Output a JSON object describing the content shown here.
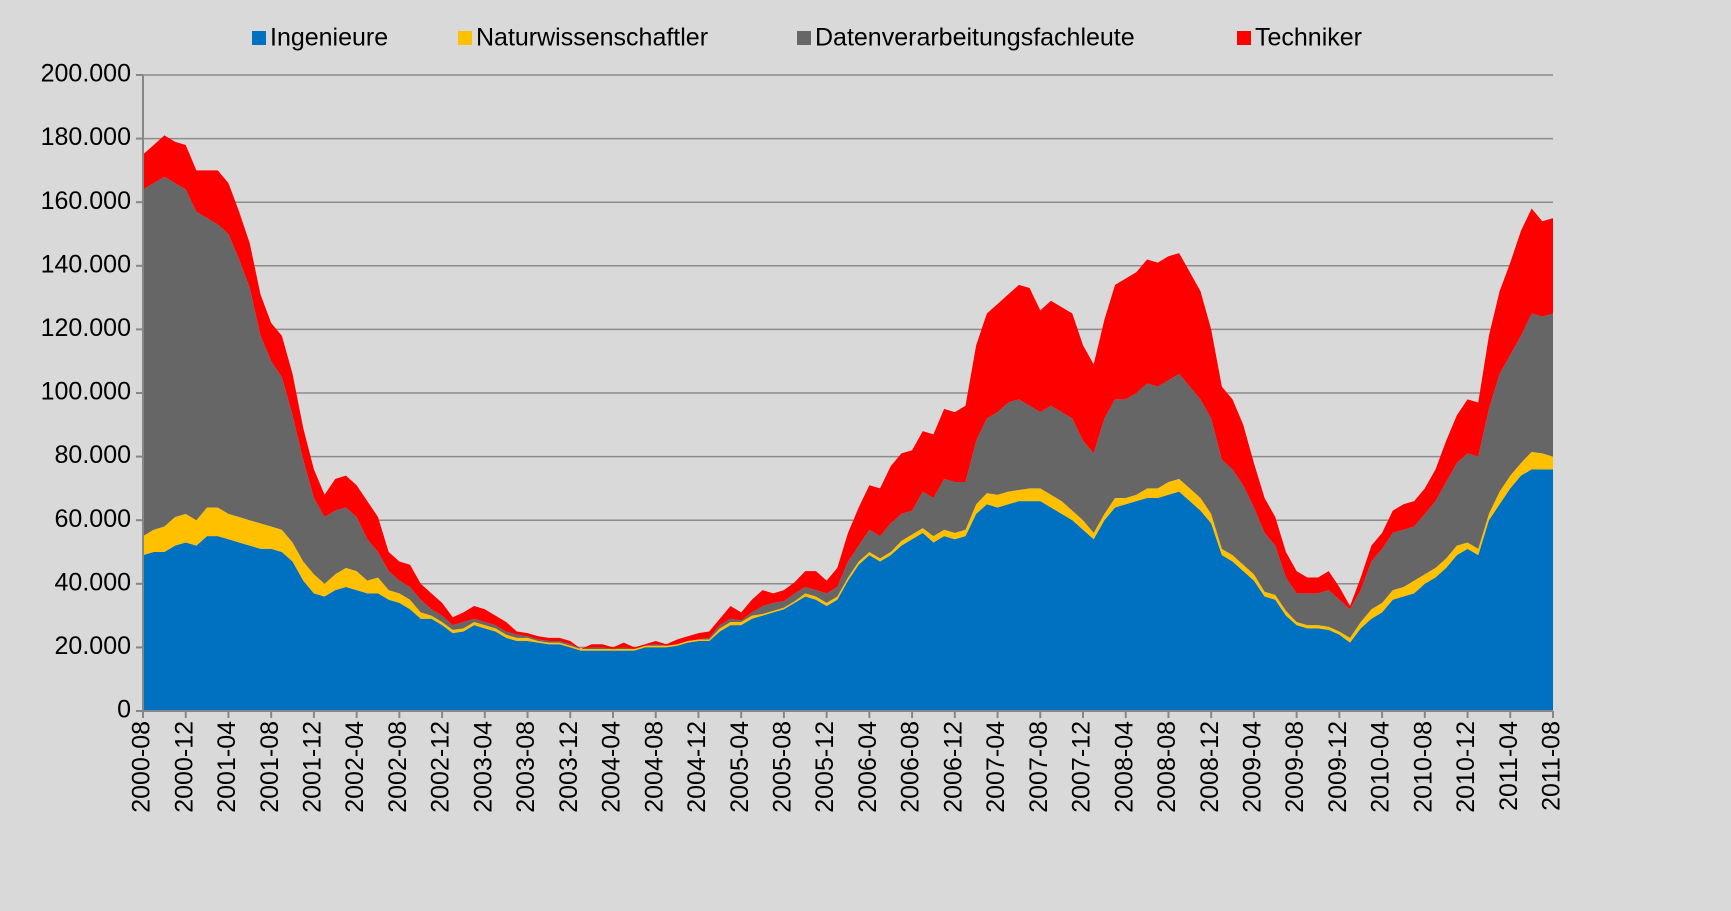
{
  "chart_data": {
    "type": "stacked_area",
    "categories": [
      "2000-08",
      null,
      null,
      null,
      "2000-12",
      null,
      null,
      null,
      "2001-04",
      null,
      null,
      null,
      "2001-08",
      null,
      null,
      null,
      "2001-12",
      null,
      null,
      null,
      "2002-04",
      null,
      null,
      null,
      "2002-08",
      null,
      null,
      null,
      "2002-12",
      null,
      null,
      null,
      "2003-04",
      null,
      null,
      null,
      "2003-08",
      null,
      null,
      null,
      "2003-12",
      null,
      null,
      null,
      "2004-04",
      null,
      null,
      null,
      "2004-08",
      null,
      null,
      null,
      "2004-12",
      null,
      null,
      null,
      "2005-04",
      null,
      null,
      null,
      "2005-08",
      null,
      null,
      null,
      "2005-12",
      null,
      null,
      null,
      "2006-04",
      null,
      null,
      null,
      "2006-08",
      null,
      null,
      null,
      "2006-12",
      null,
      null,
      null,
      "2007-04",
      null,
      null,
      null,
      "2007-08",
      null,
      null,
      null,
      "2007-12",
      null,
      null,
      null,
      "2008-04",
      null,
      null,
      null,
      "2008-08",
      null,
      null,
      null,
      "2008-12",
      null,
      null,
      null,
      "2009-04",
      null,
      null,
      null,
      "2009-08",
      null,
      null,
      null,
      "2009-12",
      null,
      null,
      null,
      "2010-04",
      null,
      null,
      null,
      "2010-08",
      null,
      null,
      null,
      "2010-12",
      null,
      null,
      null,
      "2011-04",
      null,
      null,
      null,
      "2011-08"
    ],
    "series": [
      {
        "name": "Ingenieure",
        "color": "#0070c0",
        "values": [
          49000,
          50000,
          50000,
          52000,
          53000,
          52000,
          55000,
          55000,
          54000,
          53000,
          52000,
          51000,
          51000,
          50000,
          47000,
          41000,
          37000,
          36000,
          38000,
          39000,
          38000,
          37000,
          37000,
          35000,
          34000,
          32000,
          29000,
          29000,
          27000,
          24500,
          25000,
          27000,
          26000,
          25000,
          23000,
          22000,
          22000,
          21500,
          21000,
          21000,
          20000,
          19000,
          19000,
          19000,
          19000,
          19000,
          19000,
          20000,
          20000,
          20000,
          20500,
          21500,
          22000,
          22000,
          25000,
          27000,
          27000,
          29000,
          30000,
          31000,
          32000,
          34000,
          36000,
          35000,
          33000,
          35000,
          41000,
          46000,
          49000,
          47000,
          49000,
          52000,
          54000,
          56000,
          53000,
          55000,
          54000,
          55000,
          62000,
          65000,
          64000,
          65000,
          66000,
          66000,
          66000,
          64000,
          62000,
          60000,
          57000,
          54000,
          60000,
          64000,
          65000,
          66000,
          67000,
          67000,
          68000,
          69000,
          66000,
          63000,
          59000,
          49000,
          47000,
          44000,
          41000,
          36000,
          35000,
          30000,
          27000,
          26000,
          26000,
          25500,
          24000,
          21500,
          26000,
          29000,
          31000,
          35000,
          36000,
          37000,
          40000,
          42000,
          45000,
          49000,
          51000,
          49000,
          60000,
          65000,
          70000,
          74000,
          76000,
          76000,
          76000
        ]
      },
      {
        "name": "Naturwissenschaftler",
        "color": "#ffc000",
        "values": [
          6000,
          7000,
          8000,
          9000,
          9000,
          8000,
          9000,
          9000,
          8000,
          8000,
          8000,
          8000,
          7000,
          7000,
          6000,
          6000,
          6000,
          4000,
          5000,
          6000,
          6000,
          4000,
          5000,
          3000,
          3000,
          3000,
          2000,
          1000,
          1000,
          1000,
          1000,
          1000,
          1000,
          1000,
          1000,
          1000,
          1000,
          500,
          500,
          500,
          500,
          500,
          500,
          500,
          500,
          500,
          500,
          500,
          500,
          500,
          500,
          500,
          500,
          500,
          1000,
          1000,
          1000,
          1000,
          500,
          500,
          500,
          500,
          1000,
          1000,
          1000,
          1000,
          1000,
          1000,
          1000,
          1000,
          1000,
          1500,
          1500,
          1500,
          2000,
          2000,
          2000,
          2000,
          3000,
          3500,
          4000,
          4000,
          3500,
          4000,
          4000,
          4000,
          4000,
          3000,
          3000,
          2000,
          2000,
          3000,
          2000,
          2000,
          3000,
          3000,
          4000,
          4000,
          4000,
          4000,
          3000,
          2000,
          2000,
          2000,
          2000,
          1500,
          1500,
          1500,
          1000,
          1000,
          1000,
          1000,
          1000,
          1500,
          2000,
          3000,
          3000,
          3000,
          3000,
          4000,
          3000,
          3000,
          3000,
          3000,
          2000,
          2000,
          2000,
          4000,
          4000,
          4000,
          5500,
          5000,
          4000
        ]
      },
      {
        "name": "Datenverarbeitungsfachleute",
        "color": "#666666",
        "values": [
          109000,
          109000,
          110000,
          105000,
          102000,
          97000,
          91000,
          89000,
          88000,
          81000,
          73000,
          59000,
          52000,
          48000,
          40000,
          32000,
          24000,
          21000,
          20000,
          19000,
          17000,
          13000,
          8000,
          6000,
          4000,
          4000,
          4000,
          2000,
          2000,
          1500,
          2000,
          1000,
          1000,
          1000,
          1000,
          1000,
          500,
          500,
          500,
          500,
          500,
          0,
          500,
          500,
          0,
          500,
          0,
          0,
          500,
          0,
          0,
          0,
          0,
          500,
          1000,
          1000,
          500,
          1000,
          2500,
          2500,
          2000,
          2500,
          2000,
          2000,
          3000,
          3000,
          5000,
          5000,
          7000,
          7000,
          9000,
          8500,
          7500,
          11500,
          12000,
          16000,
          16000,
          15000,
          20000,
          23500,
          26000,
          28000,
          28500,
          26000,
          24000,
          28000,
          28000,
          29000,
          25000,
          25000,
          30000,
          31000,
          31000,
          32000,
          33000,
          32000,
          32000,
          33000,
          32000,
          31000,
          30000,
          28000,
          27000,
          25000,
          21000,
          18500,
          15500,
          10500,
          9000,
          10000,
          10000,
          11500,
          10000,
          9000,
          10000,
          15000,
          17000,
          18000,
          18000,
          17000,
          19000,
          21000,
          24000,
          26000,
          28000,
          29000,
          33000,
          37000,
          38000,
          40000,
          43500,
          43000,
          45000
        ]
      },
      {
        "name": "Techniker",
        "color": "#ff0000",
        "values": [
          11000,
          12000,
          13000,
          13000,
          14000,
          13000,
          15000,
          17000,
          16000,
          15000,
          14000,
          13000,
          12000,
          13000,
          13000,
          10000,
          9000,
          7000,
          10000,
          10000,
          10000,
          12000,
          11000,
          6000,
          6000,
          7000,
          5000,
          5000,
          4000,
          2500,
          3000,
          4000,
          4000,
          3000,
          3000,
          1000,
          1000,
          1000,
          1000,
          1000,
          1000,
          0,
          1000,
          1000,
          500,
          1500,
          500,
          500,
          1000,
          500,
          1500,
          1500,
          2000,
          2000,
          2000,
          4000,
          2500,
          4000,
          5000,
          3000,
          3500,
          3500,
          5000,
          6000,
          4000,
          6000,
          9000,
          12000,
          14000,
          15000,
          18000,
          19000,
          19000,
          19000,
          20000,
          22000,
          22000,
          24000,
          30000,
          33000,
          34000,
          34000,
          36000,
          37000,
          32000,
          33000,
          33000,
          33000,
          30000,
          28000,
          31000,
          36000,
          38000,
          38000,
          39000,
          39000,
          39000,
          38000,
          36000,
          34000,
          28000,
          23000,
          22000,
          19000,
          14000,
          11000,
          9000,
          8000,
          7000,
          5000,
          5000,
          6000,
          4000,
          1000,
          4000,
          5000,
          5000,
          7000,
          8000,
          8000,
          8000,
          10000,
          13000,
          15000,
          17000,
          17000,
          23000,
          26000,
          29000,
          33000,
          33000,
          30000,
          30000
        ]
      }
    ],
    "ylim": [
      0,
      200000
    ],
    "yticks": [
      0,
      {
        "value": 20000,
        "label": "20.000"
      },
      {
        "value": 40000,
        "label": "40.000"
      },
      {
        "value": 60000,
        "label": "60.000"
      },
      {
        "value": 80000,
        "label": "80.000"
      },
      {
        "value": 100000,
        "label": "100.000"
      },
      {
        "value": 120000,
        "label": "120.000"
      },
      {
        "value": 140000,
        "label": "140.000"
      },
      {
        "value": 160000,
        "label": "160.000"
      },
      {
        "value": 180000,
        "label": "180.000"
      },
      {
        "value": 200000,
        "label": "200.000"
      }
    ],
    "grid": true,
    "legend": "top"
  }
}
